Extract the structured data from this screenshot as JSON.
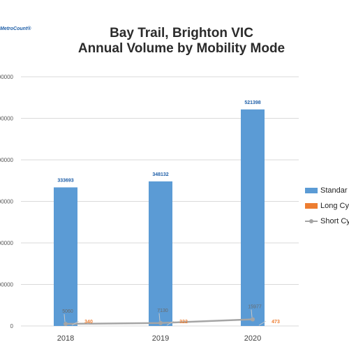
{
  "logo_text": "MetroCount®",
  "title_line1": "Bay Trail, Brighton VIC",
  "title_line2": "Annual Volume by Mobility Mode",
  "colors": {
    "standard": "#5b9bd5",
    "long": "#ed7d31",
    "short": "#a5a5a5",
    "grid": "#d9d9d9",
    "axis_text": "#595959"
  },
  "chart_data": {
    "type": "bar",
    "categories": [
      "2018",
      "2019",
      "2020"
    ],
    "ylim": [
      0,
      600000
    ],
    "ytick_labels": [
      "0",
      "00000",
      "00000",
      "00000",
      "00000",
      "00000",
      "00000"
    ],
    "series": [
      {
        "name": "Standar",
        "type": "bar",
        "values": [
          333693,
          348132,
          521398
        ],
        "labels": [
          "333693",
          "348132",
          "521398"
        ]
      },
      {
        "name": "Long Cy",
        "type": "label",
        "values": [
          340,
          322,
          473
        ],
        "labels": [
          "340",
          "322",
          "473"
        ]
      },
      {
        "name": "Short Cy",
        "type": "line",
        "values": [
          5060,
          7130,
          15977
        ],
        "labels": [
          "5060",
          "7130",
          "15977"
        ]
      }
    ],
    "legend_position": "right",
    "grid": true
  }
}
